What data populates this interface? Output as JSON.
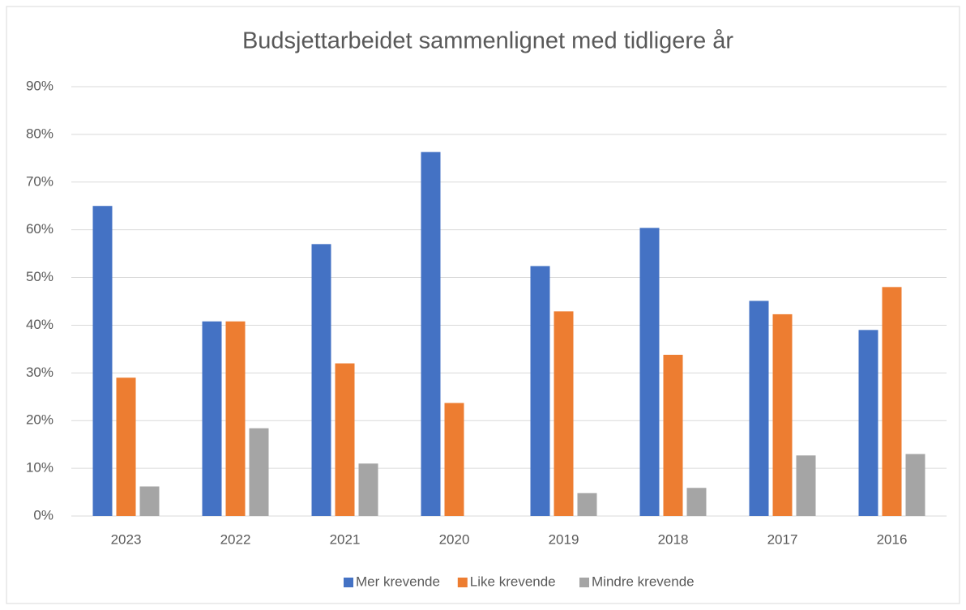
{
  "chart_data": {
    "type": "bar",
    "title": "Budsjettarbeidet sammenlignet med tidligere år",
    "categories": [
      "2023",
      "2022",
      "2021",
      "2020",
      "2019",
      "2018",
      "2017",
      "2016"
    ],
    "series": [
      {
        "name": "Mer krevende",
        "color": "#4472c4",
        "values": [
          65,
          40.8,
          57,
          76.3,
          52.4,
          60.4,
          45.1,
          39
        ]
      },
      {
        "name": "Like krevende",
        "color": "#ed7d31",
        "values": [
          29,
          40.8,
          32,
          23.7,
          42.9,
          33.8,
          42.3,
          48
        ]
      },
      {
        "name": "Mindre krevende",
        "color": "#a5a5a5",
        "values": [
          6.2,
          18.4,
          11,
          0,
          4.8,
          5.9,
          12.7,
          13
        ]
      }
    ],
    "ylim": [
      0,
      90
    ],
    "yticks": [
      {
        "value": 0,
        "label": "0%"
      },
      {
        "value": 10,
        "label": "10%"
      },
      {
        "value": 20,
        "label": "20%"
      },
      {
        "value": 30,
        "label": "30%"
      },
      {
        "value": 40,
        "label": "40%"
      },
      {
        "value": 50,
        "label": "50%"
      },
      {
        "value": 60,
        "label": "60%"
      },
      {
        "value": 70,
        "label": "70%"
      },
      {
        "value": 80,
        "label": "80%"
      },
      {
        "value": 90,
        "label": "90%"
      }
    ],
    "grid": true,
    "legend": "bottom"
  }
}
